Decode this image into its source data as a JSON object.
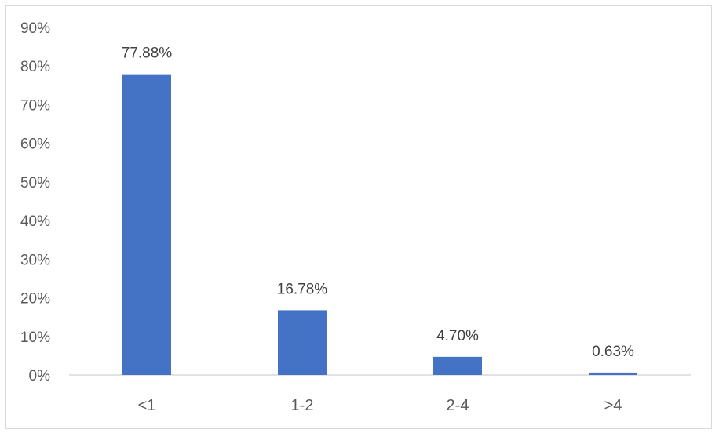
{
  "chart_data": {
    "type": "bar",
    "categories": [
      "<1",
      "1-2",
      "2-4",
      ">4"
    ],
    "values": [
      77.88,
      16.78,
      4.7,
      0.63
    ],
    "data_labels": [
      "77.88%",
      "16.78%",
      "4.70%",
      "0.63%"
    ],
    "yticks": [
      "0%",
      "10%",
      "20%",
      "30%",
      "40%",
      "50%",
      "60%",
      "70%",
      "80%",
      "90%"
    ],
    "ylim": [
      0,
      90
    ],
    "grid": false,
    "bar_color": "#4472c4",
    "axis_color": "#d9d9d9"
  }
}
